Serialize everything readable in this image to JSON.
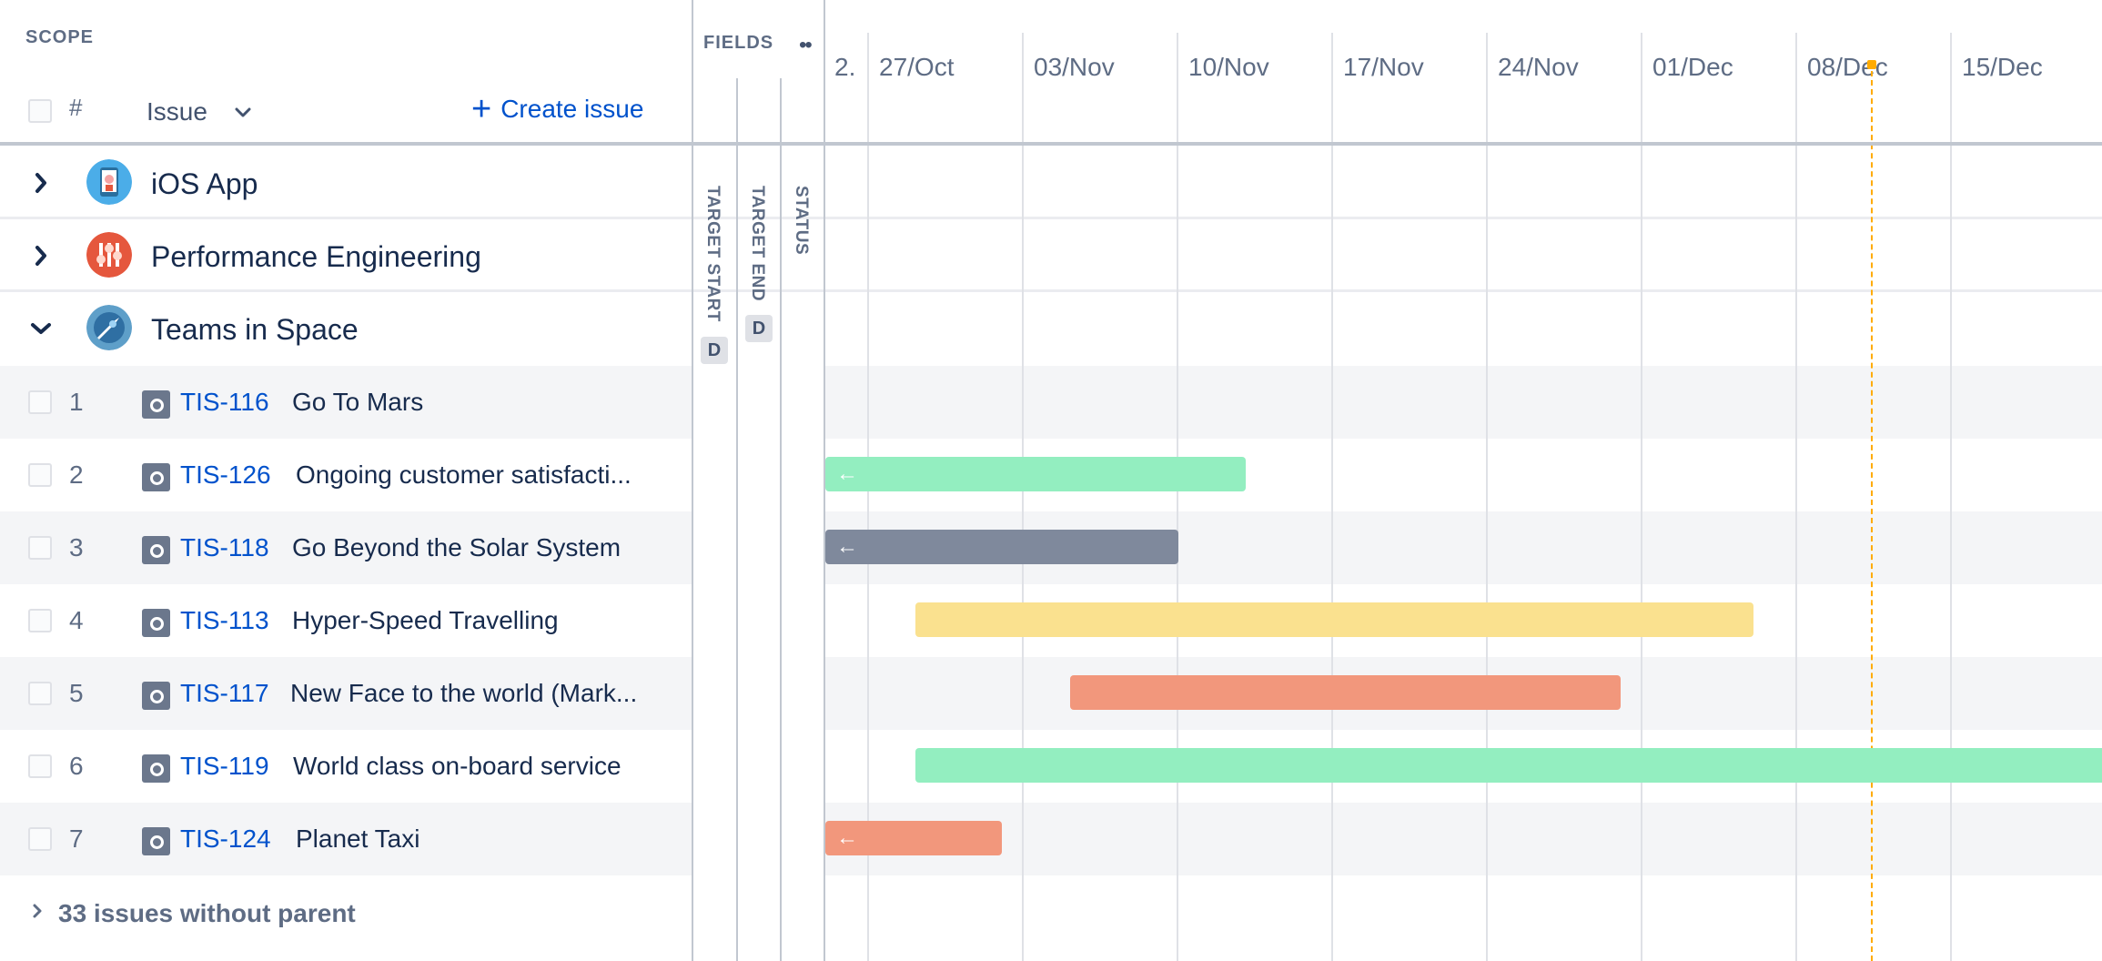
{
  "scope": {
    "title": "SCOPE",
    "hash_label": "#",
    "issue_column_label": "Issue",
    "create_issue_label": "Create issue",
    "groups": [
      {
        "name": "iOS App",
        "expanded": false,
        "avatar_icon": "phone-robot-icon",
        "color": "#4bade8"
      },
      {
        "name": "Performance Engineering",
        "expanded": false,
        "avatar_icon": "sliders-icon",
        "color": "#e5573d"
      },
      {
        "name": "Teams in Space",
        "expanded": true,
        "avatar_icon": "rocket-icon",
        "color": "#5e9fc9"
      }
    ],
    "issues": [
      {
        "num": "1",
        "key": "TIS-116",
        "summary": "Go To Mars"
      },
      {
        "num": "2",
        "key": "TIS-126",
        "summary": "Ongoing customer satisfacti..."
      },
      {
        "num": "3",
        "key": "TIS-118",
        "summary": "Go Beyond the Solar System"
      },
      {
        "num": "4",
        "key": "TIS-113",
        "summary": "Hyper-Speed Travelling"
      },
      {
        "num": "5",
        "key": "TIS-117",
        "summary": "New Face to the world (Mark..."
      },
      {
        "num": "6",
        "key": "TIS-119",
        "summary": "World class on-board service"
      },
      {
        "num": "7",
        "key": "TIS-124",
        "summary": "Planet Taxi"
      }
    ],
    "footer_label": "33 issues without parent"
  },
  "fields": {
    "title": "FIELDS",
    "more_icon": "more-dots-icon",
    "columns": [
      {
        "label": "TARGET START",
        "badge": "D"
      },
      {
        "label": "TARGET END",
        "badge": "D"
      },
      {
        "label": "STATUS",
        "badge": ""
      }
    ]
  },
  "timeline": {
    "dates": [
      "2.",
      "27/Oct",
      "03/Nov",
      "10/Nov",
      "17/Nov",
      "24/Nov",
      "01/Dec",
      "08/Dec",
      "15/Dec"
    ],
    "today_marker": "today-marker-icon",
    "bars": [
      {
        "issue": "TIS-126",
        "color": "#93eec0",
        "arrow": true
      },
      {
        "issue": "TIS-118",
        "color": "#7f899c",
        "arrow": true
      },
      {
        "issue": "TIS-113",
        "color": "#fae18f",
        "arrow": false
      },
      {
        "issue": "TIS-117",
        "color": "#f2977c",
        "arrow": false
      },
      {
        "issue": "TIS-119",
        "color": "#93eec0",
        "arrow": false
      },
      {
        "issue": "TIS-124",
        "color": "#f2977c",
        "arrow": true
      }
    ]
  }
}
